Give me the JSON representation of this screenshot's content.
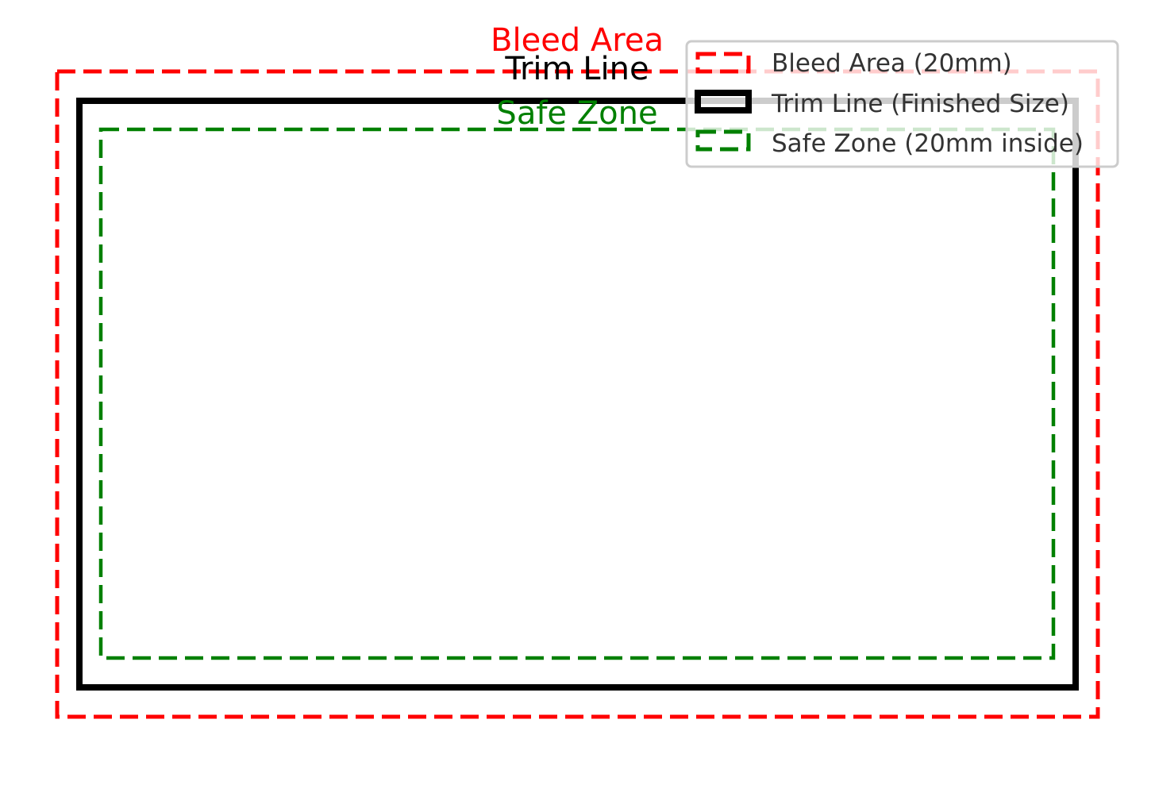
{
  "labels": {
    "bleed": "Bleed Area",
    "trim": "Trim Line",
    "safe": "Safe Zone"
  },
  "legend": {
    "items": [
      {
        "label": "Bleed Area (20mm)",
        "color": "#ff0000",
        "style": "dashed"
      },
      {
        "label": "Trim Line (Finished Size)",
        "color": "#000000",
        "style": "solid"
      },
      {
        "label": "Safe Zone (20mm inside)",
        "color": "#008000",
        "style": "dashed"
      }
    ]
  },
  "colors": {
    "bleed": "#ff0000",
    "trim": "#000000",
    "safe": "#008000"
  }
}
